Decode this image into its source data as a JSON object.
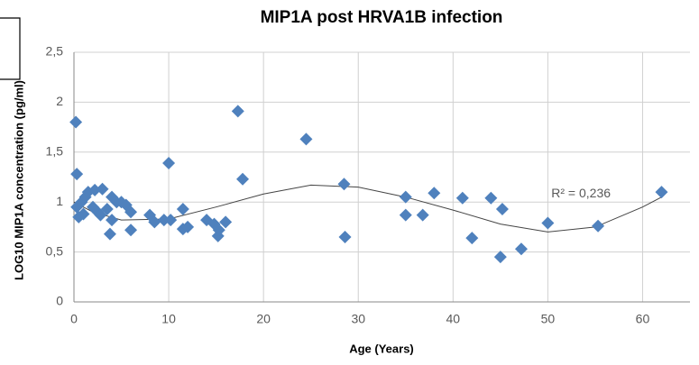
{
  "chart_data": {
    "type": "scatter",
    "title": "MIP1A post HRVA1B infection",
    "x_label": "Age (Years)",
    "y_label": "LOG10 MIP1A concentration (pg/ml)",
    "color": "#4f81bd",
    "grid": true,
    "xlim": [
      0,
      65
    ],
    "xticks": [
      0,
      10,
      20,
      30,
      40,
      50,
      60
    ],
    "ylim": [
      0,
      2.5
    ],
    "yticks": [
      0,
      {
        "value": 0.5,
        "label": "0,5"
      },
      1,
      {
        "value": 1.5,
        "label": "1,5"
      },
      2,
      {
        "value": 2.5,
        "label": "2,5"
      }
    ],
    "x": [
      0.2,
      0.3,
      0.3,
      0.5,
      0.8,
      1,
      1.2,
      1.5,
      2,
      2.2,
      2.5,
      2.8,
      3,
      3.5,
      3.8,
      4,
      4,
      4.5,
      5,
      5.5,
      6,
      6,
      8,
      8.5,
      9.5,
      10,
      10.2,
      11.5,
      11.5,
      12,
      14,
      14.8,
      15.2,
      15.3,
      16,
      17.3,
      17.8,
      24.5,
      28.5,
      28.6,
      35,
      35,
      36.8,
      38,
      41,
      42,
      44,
      45,
      45.2,
      47.2,
      50,
      55.3,
      62
    ],
    "values": [
      1.8,
      1.28,
      0.95,
      0.85,
      1.0,
      0.88,
      1.05,
      1.1,
      0.95,
      1.12,
      0.9,
      0.87,
      1.13,
      0.93,
      0.68,
      0.82,
      1.05,
      1.0,
      1.0,
      0.97,
      0.72,
      0.9,
      0.87,
      0.8,
      0.82,
      1.39,
      0.82,
      0.93,
      0.73,
      0.75,
      0.82,
      0.78,
      0.66,
      0.72,
      0.8,
      1.91,
      1.23,
      1.63,
      1.18,
      0.65,
      1.05,
      0.87,
      0.87,
      1.09,
      1.04,
      0.64,
      1.04,
      0.45,
      0.93,
      0.53,
      0.79,
      0.76,
      1.1
    ],
    "trendline": {
      "x": [
        0,
        2,
        5,
        10,
        15,
        20,
        25,
        30,
        35,
        40,
        45,
        50,
        55,
        60,
        62
      ],
      "values": [
        1.0,
        0.9,
        0.82,
        0.83,
        0.95,
        1.08,
        1.17,
        1.15,
        1.05,
        0.92,
        0.78,
        0.7,
        0.75,
        0.95,
        1.05
      ]
    },
    "annotation": {
      "text": "R² = 0,236",
      "x": 53.5,
      "y": 1.08
    }
  }
}
